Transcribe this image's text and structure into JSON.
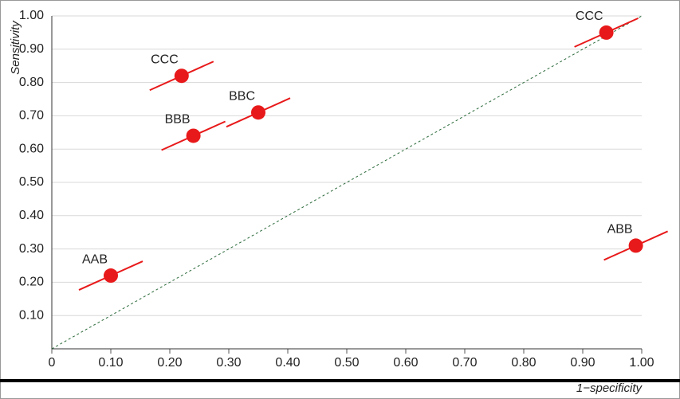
{
  "chart_data": {
    "type": "scatter",
    "y_label": "Sensitivity",
    "x_label": "1−specificity",
    "x": [
      0.94,
      0.22,
      0.24,
      0.35,
      0.1,
      0.99
    ],
    "values": [
      0.95,
      0.82,
      0.64,
      0.71,
      0.22,
      0.31
    ],
    "point_labels": [
      "CCC",
      "CCC",
      "BBB",
      "BBC",
      "AAB",
      "ABB"
    ],
    "color": "#e8191a",
    "xlim": [
      0,
      1
    ],
    "ylim": [
      0,
      1
    ],
    "xticks": [
      0,
      {
        "value": 0.1,
        "label": "0.10"
      },
      {
        "value": 0.2,
        "label": "0.20"
      },
      {
        "value": 0.3,
        "label": "0.30"
      },
      {
        "value": 0.4,
        "label": "0.40"
      },
      {
        "value": 0.5,
        "label": "0.50"
      },
      {
        "value": 0.6,
        "label": "0.60"
      },
      {
        "value": 0.7,
        "label": "0.70"
      },
      {
        "value": 0.8,
        "label": "0.80"
      },
      {
        "value": 0.9,
        "label": "0.90"
      },
      {
        "value": 1,
        "label": "1.00"
      }
    ],
    "yticks": [
      {
        "value": 0.1,
        "label": "0.10"
      },
      {
        "value": 0.2,
        "label": "0.20"
      },
      {
        "value": 0.3,
        "label": "0.30"
      },
      {
        "value": 0.4,
        "label": "0.40"
      },
      {
        "value": 0.5,
        "label": "0.50"
      },
      {
        "value": 0.6,
        "label": "0.60"
      },
      {
        "value": 0.7,
        "label": "0.70"
      },
      {
        "value": 0.8,
        "label": "0.80"
      },
      {
        "value": 0.9,
        "label": "0.90"
      },
      {
        "value": 1,
        "label": "1.00"
      }
    ],
    "grid": true
  }
}
